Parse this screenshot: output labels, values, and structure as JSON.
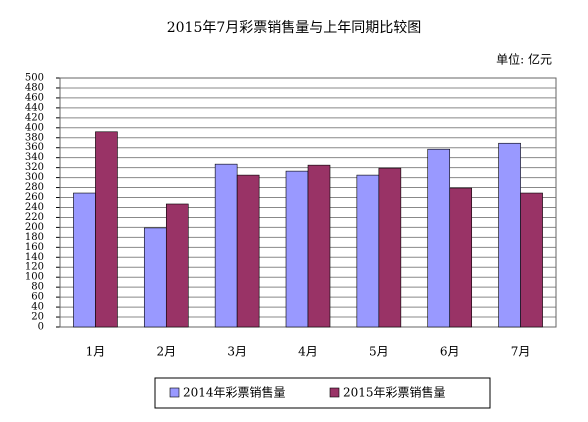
{
  "chart_data": {
    "type": "bar",
    "title": "2015年7月彩票销售量与上年同期比较图",
    "unit": "单位: 亿元",
    "categories": [
      "1月",
      "2月",
      "3月",
      "4月",
      "5月",
      "6月",
      "7月"
    ],
    "series": [
      {
        "name": "2014年彩票销售量",
        "color": "#9999ff",
        "values": [
          269,
          199,
          327,
          313,
          305,
          357,
          369
        ]
      },
      {
        "name": "2015年彩票销售量",
        "color": "#993366",
        "values": [
          392,
          247,
          305,
          325,
          319,
          279,
          269
        ]
      }
    ],
    "ylim": [
      0,
      500
    ],
    "yticks": [
      0,
      20,
      40,
      60,
      80,
      100,
      120,
      140,
      160,
      180,
      200,
      220,
      240,
      260,
      280,
      300,
      320,
      340,
      360,
      380,
      400,
      420,
      440,
      460,
      480,
      500
    ],
    "grid": true
  }
}
